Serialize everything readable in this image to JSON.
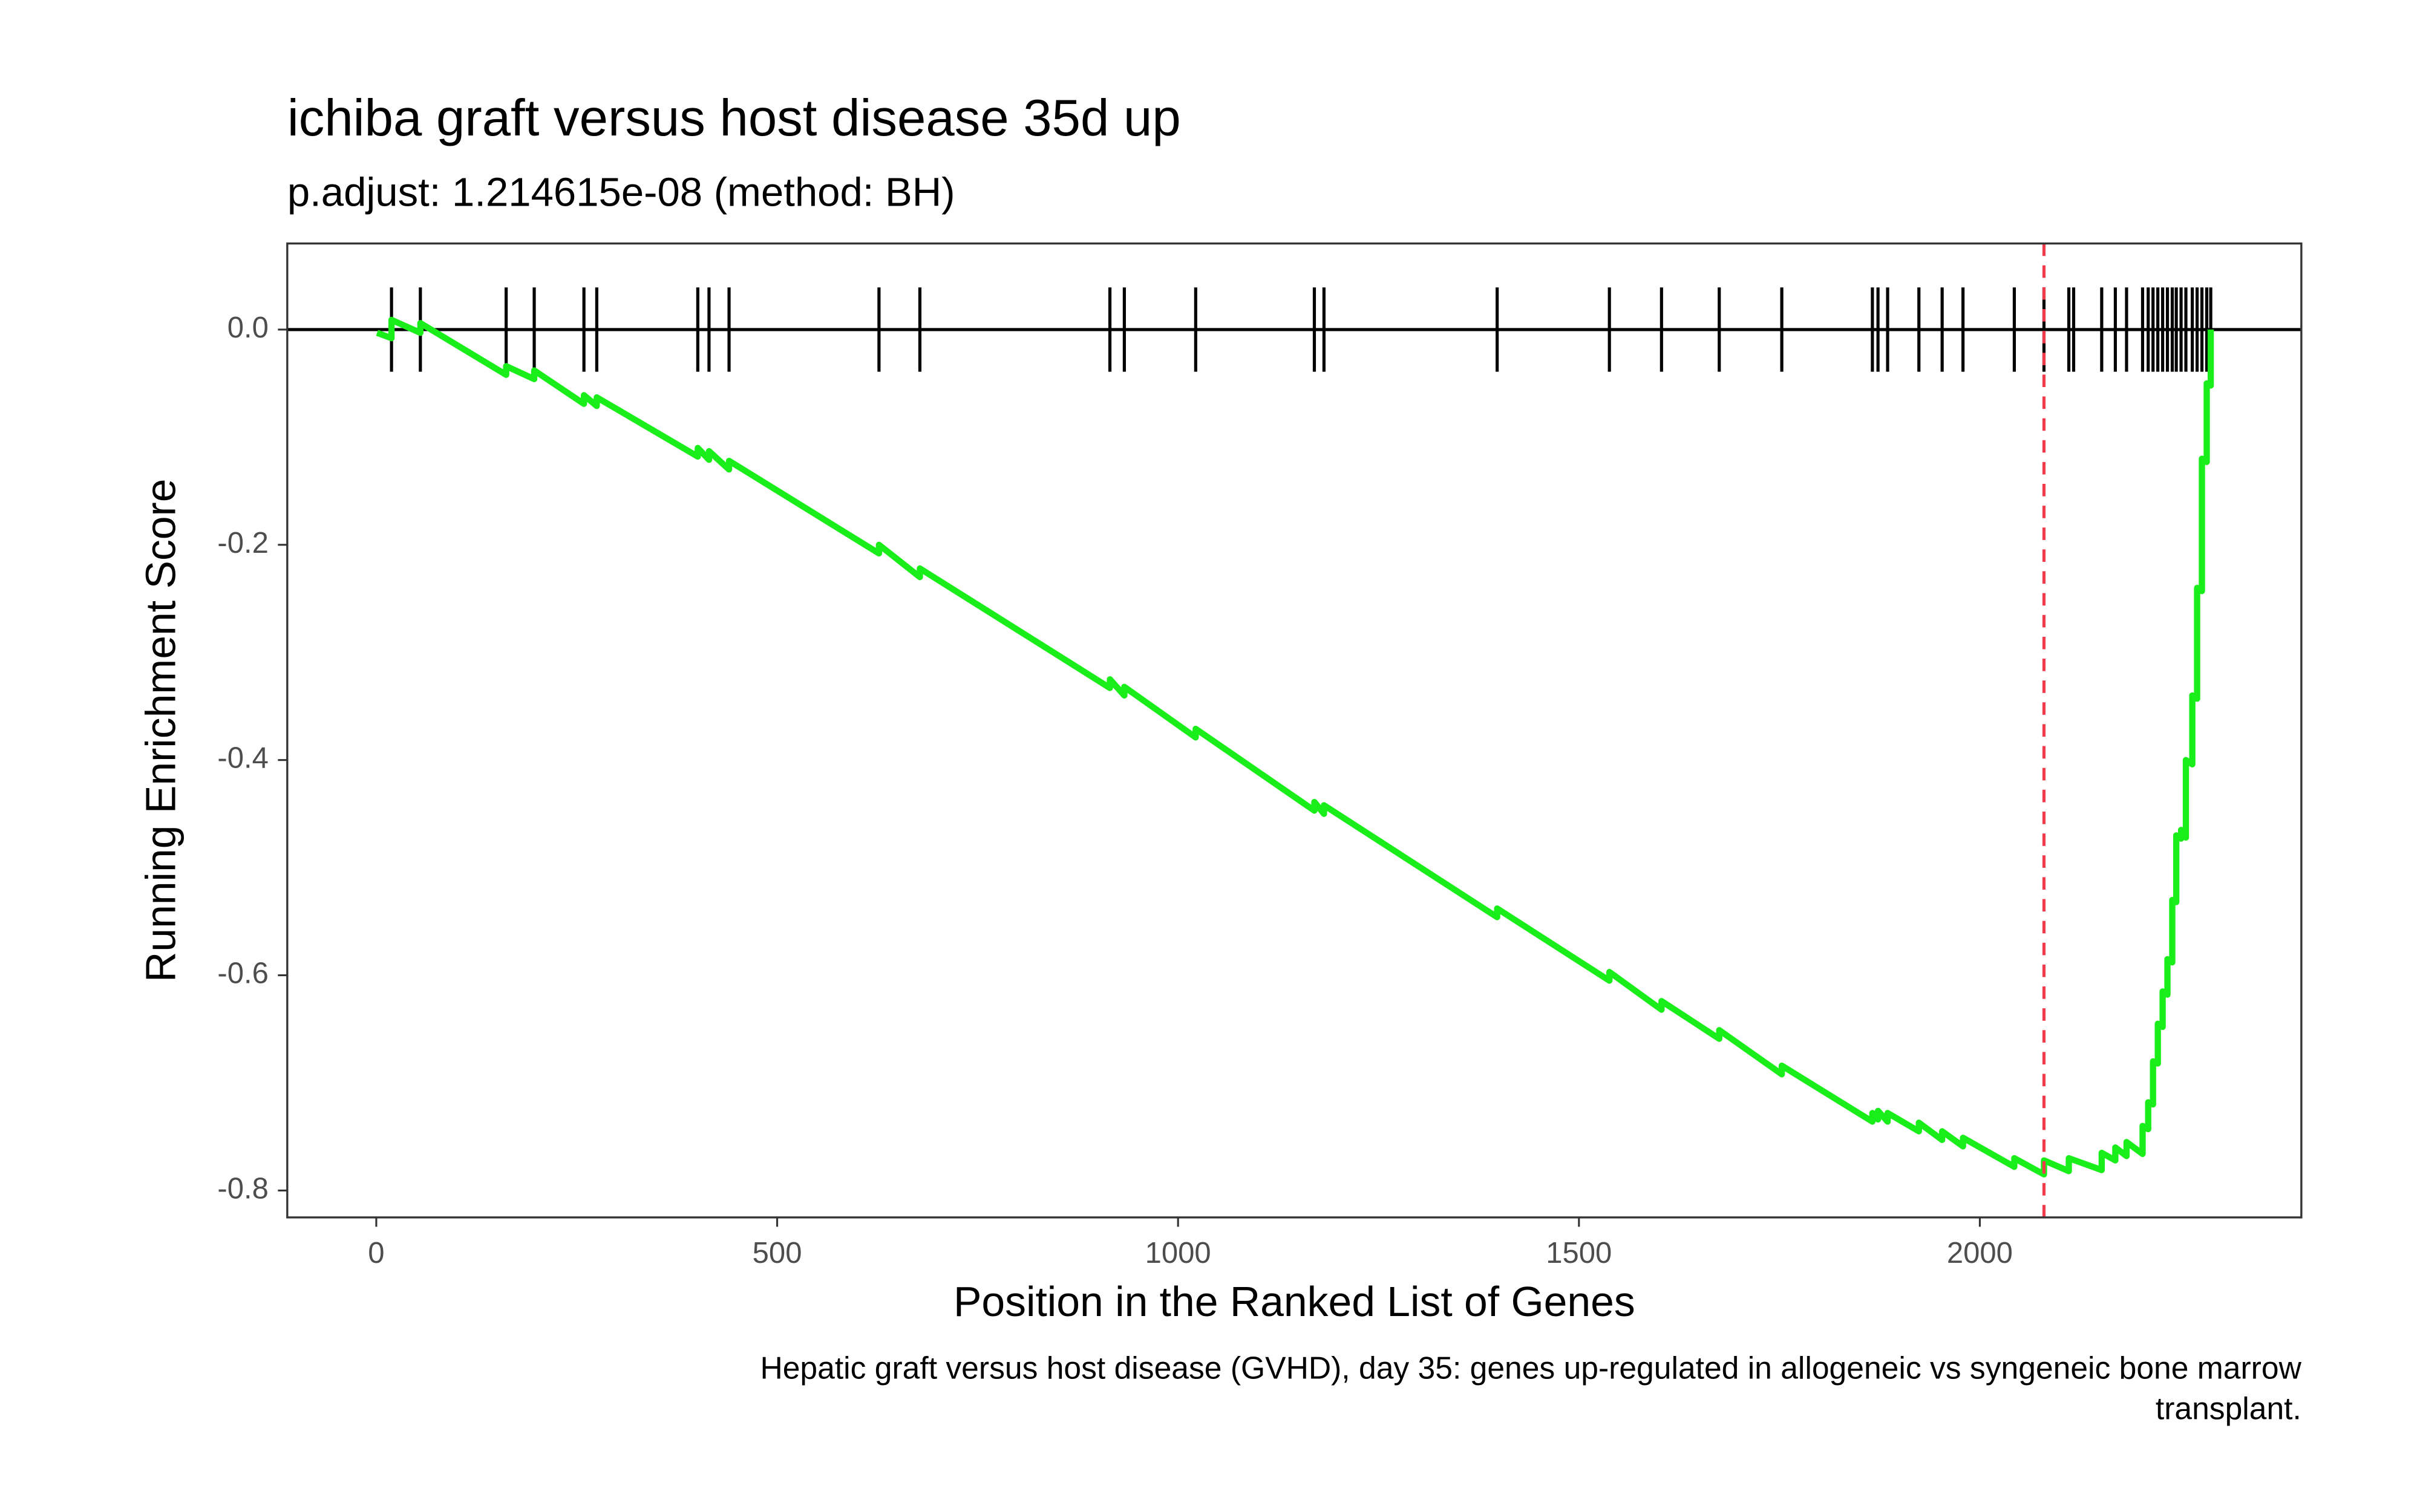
{
  "chart_data": {
    "type": "line",
    "title": "ichiba graft versus host disease 35d up",
    "subtitle": "p.adjust: 1.214615e-08 (method: BH)",
    "x_label": "Position in the Ranked List of Genes",
    "y_label": "Running Enrichment Score",
    "caption": [
      "Hepatic graft versus host disease (GVHD), day 35: genes up-regulated in allogeneic vs syngeneic bone marrow",
      "transplant."
    ],
    "xlim": [
      -111,
      2401
    ],
    "ylim": [
      -0.825,
      0.08
    ],
    "xticks": [
      0,
      500,
      1000,
      1500,
      2000
    ],
    "yticks": [
      {
        "value": 0,
        "label": "0.0"
      },
      -0.2,
      -0.4,
      -0.6,
      -0.8
    ],
    "hline": 0,
    "vline": 2080,
    "vline_color": "#ef3b4b",
    "hits": [
      19,
      55,
      162,
      197,
      259,
      275,
      401,
      415,
      440,
      627,
      678,
      915,
      933,
      1022,
      1170,
      1182,
      1398,
      1538,
      1603,
      1675,
      1753,
      1866,
      1873,
      1885,
      1924,
      1953,
      1979,
      2043,
      2080,
      2111,
      2117,
      2152,
      2169,
      2183,
      2203,
      2210,
      2216,
      2222,
      2228,
      2234,
      2240,
      2245,
      2251,
      2257,
      2265,
      2271,
      2277,
      2283,
      2288
    ],
    "series": [
      {
        "color": "#1aee1a",
        "x": [
          1,
          19,
          19,
          55,
          55,
          162,
          162,
          197,
          197,
          259,
          259,
          275,
          275,
          401,
          401,
          415,
          415,
          440,
          440,
          627,
          627,
          678,
          678,
          915,
          915,
          933,
          933,
          1022,
          1022,
          1170,
          1170,
          1182,
          1182,
          1398,
          1398,
          1538,
          1538,
          1603,
          1603,
          1675,
          1675,
          1753,
          1753,
          1866,
          1866,
          1873,
          1873,
          1885,
          1885,
          1924,
          1924,
          1953,
          1953,
          1979,
          1979,
          2043,
          2043,
          2080,
          2080,
          2111,
          2111,
          2152,
          2152,
          2169,
          2169,
          2183,
          2183,
          2203,
          2203,
          2210,
          2210,
          2216,
          2216,
          2222,
          2222,
          2228,
          2228,
          2234,
          2234,
          2240,
          2240,
          2245,
          2245,
          2251,
          2251,
          2257,
          2257,
          2265,
          2265,
          2271,
          2271,
          2277,
          2277,
          2283,
          2283,
          2288,
          2288
        ],
        "values": [
          -0.003,
          -0.008,
          0.009,
          -0.003,
          0.006,
          -0.042,
          -0.034,
          -0.046,
          -0.038,
          -0.069,
          -0.061,
          -0.071,
          -0.063,
          -0.118,
          -0.11,
          -0.121,
          -0.113,
          -0.13,
          -0.122,
          -0.208,
          -0.2,
          -0.23,
          -0.222,
          -0.333,
          -0.325,
          -0.34,
          -0.332,
          -0.379,
          -0.371,
          -0.447,
          -0.439,
          -0.45,
          -0.442,
          -0.546,
          -0.538,
          -0.605,
          -0.597,
          -0.632,
          -0.624,
          -0.659,
          -0.651,
          -0.692,
          -0.684,
          -0.736,
          -0.728,
          -0.734,
          -0.726,
          -0.736,
          -0.728,
          -0.745,
          -0.737,
          -0.753,
          -0.745,
          -0.759,
          -0.751,
          -0.778,
          -0.77,
          -0.785,
          -0.772,
          -0.782,
          -0.77,
          -0.781,
          -0.765,
          -0.772,
          -0.76,
          -0.768,
          -0.755,
          -0.766,
          -0.74,
          -0.743,
          -0.718,
          -0.72,
          -0.68,
          -0.682,
          -0.645,
          -0.648,
          -0.615,
          -0.618,
          -0.585,
          -0.588,
          -0.53,
          -0.532,
          -0.47,
          -0.473,
          -0.465,
          -0.472,
          -0.4,
          -0.404,
          -0.34,
          -0.343,
          -0.24,
          -0.243,
          -0.12,
          -0.123,
          -0.05,
          -0.052,
          0.0
        ]
      }
    ]
  }
}
